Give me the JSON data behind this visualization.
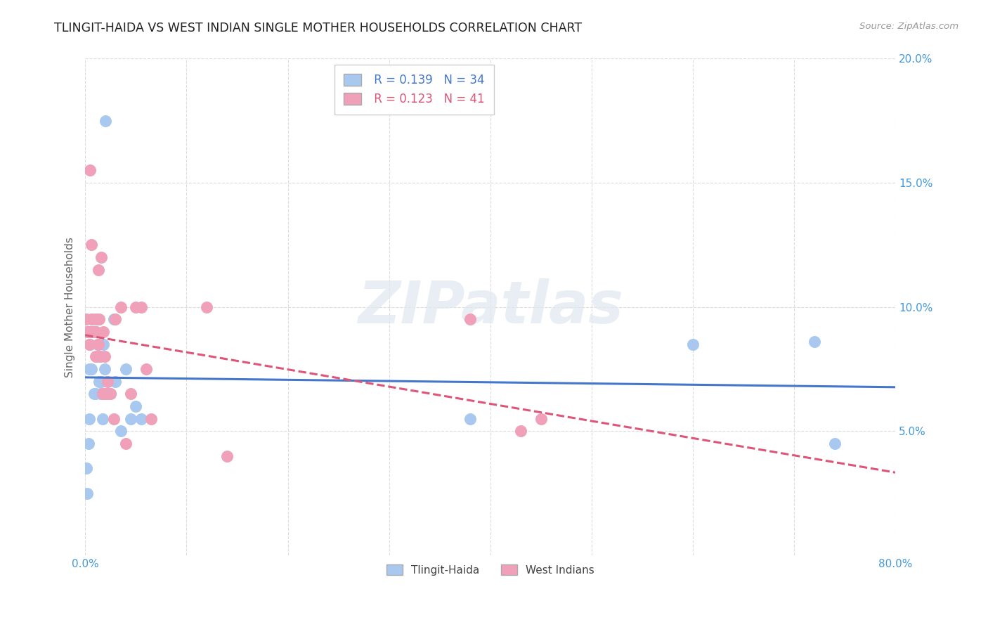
{
  "title": "TLINGIT-HAIDA VS WEST INDIAN SINGLE MOTHER HOUSEHOLDS CORRELATION CHART",
  "source": "Source: ZipAtlas.com",
  "ylabel": "Single Mother Households",
  "xlim": [
    0,
    0.8
  ],
  "ylim": [
    0,
    0.2
  ],
  "xticks": [
    0.0,
    0.1,
    0.2,
    0.3,
    0.4,
    0.5,
    0.6,
    0.7,
    0.8
  ],
  "yticks": [
    0.0,
    0.05,
    0.1,
    0.15,
    0.2
  ],
  "xtick_labels": [
    "0.0%",
    "",
    "",
    "",
    "",
    "",
    "",
    "",
    "80.0%"
  ],
  "ytick_labels": [
    "",
    "5.0%",
    "10.0%",
    "15.0%",
    "20.0%"
  ],
  "tlingit_color": "#A8C8F0",
  "west_indian_color": "#F0A0B8",
  "tlingit_line_color": "#4477CC",
  "west_indian_line_color": "#DD5577",
  "legend_r1": "R = 0.139",
  "legend_n1": "N = 34",
  "legend_r2": "R = 0.123",
  "legend_n2": "N = 41",
  "label1": "Tlingit-Haida",
  "label2": "West Indians",
  "watermark": "ZIPatlas",
  "tlingit_x": [
    0.001,
    0.002,
    0.003,
    0.004,
    0.004,
    0.005,
    0.006,
    0.007,
    0.008,
    0.009,
    0.01,
    0.011,
    0.012,
    0.013,
    0.014,
    0.015,
    0.016,
    0.017,
    0.018,
    0.019,
    0.02,
    0.022,
    0.025,
    0.028,
    0.03,
    0.035,
    0.04,
    0.045,
    0.05,
    0.055,
    0.38,
    0.6,
    0.72,
    0.74
  ],
  "tlingit_y": [
    0.035,
    0.025,
    0.045,
    0.075,
    0.055,
    0.085,
    0.075,
    0.09,
    0.095,
    0.065,
    0.065,
    0.09,
    0.085,
    0.08,
    0.07,
    0.065,
    0.07,
    0.055,
    0.085,
    0.075,
    0.175,
    0.065,
    0.065,
    0.095,
    0.07,
    0.05,
    0.075,
    0.055,
    0.06,
    0.055,
    0.055,
    0.085,
    0.086,
    0.045
  ],
  "west_indian_x": [
    0.001,
    0.002,
    0.003,
    0.004,
    0.004,
    0.005,
    0.006,
    0.006,
    0.007,
    0.008,
    0.009,
    0.01,
    0.01,
    0.011,
    0.012,
    0.013,
    0.013,
    0.014,
    0.015,
    0.016,
    0.017,
    0.018,
    0.019,
    0.02,
    0.021,
    0.022,
    0.025,
    0.028,
    0.03,
    0.035,
    0.04,
    0.045,
    0.05,
    0.055,
    0.06,
    0.065,
    0.12,
    0.14,
    0.38,
    0.43,
    0.45
  ],
  "west_indian_y": [
    0.095,
    0.09,
    0.09,
    0.09,
    0.085,
    0.155,
    0.125,
    0.095,
    0.09,
    0.09,
    0.09,
    0.09,
    0.08,
    0.095,
    0.095,
    0.115,
    0.085,
    0.095,
    0.08,
    0.12,
    0.065,
    0.09,
    0.08,
    0.065,
    0.065,
    0.07,
    0.065,
    0.055,
    0.095,
    0.1,
    0.045,
    0.065,
    0.1,
    0.1,
    0.075,
    0.055,
    0.1,
    0.04,
    0.095,
    0.05,
    0.055
  ]
}
